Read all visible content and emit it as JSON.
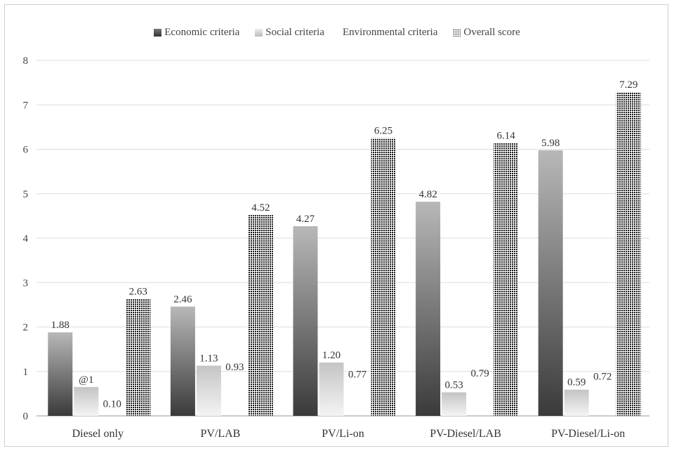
{
  "chart_data": {
    "type": "bar",
    "categories": [
      "Diesel only",
      "PV/LAB",
      "PV/Li-on",
      "PV-Diesel/LAB",
      "PV-Diesel/Li-on"
    ],
    "series": [
      {
        "name": "Economic criteria",
        "values": [
          1.88,
          2.46,
          4.27,
          4.82,
          5.98
        ],
        "labels": [
          "1.88",
          "2.46",
          "4.27",
          "4.82",
          "5.98"
        ],
        "color": "#555555"
      },
      {
        "name": "Social criteria",
        "values": [
          0.65,
          1.13,
          1.2,
          0.53,
          0.59
        ],
        "labels": [
          "@1",
          "1.13",
          "1.20",
          "0.53",
          "0.59"
        ],
        "color": "#dddddd"
      },
      {
        "name": "Environmental criteria",
        "values": [
          0.1,
          0.93,
          0.77,
          0.79,
          0.72
        ],
        "labels": [
          "0.10",
          "0.93",
          "0.77",
          "0.79",
          "0.72"
        ],
        "color": "#ffffff"
      },
      {
        "name": "Overall score",
        "values": [
          2.63,
          4.52,
          6.25,
          6.14,
          7.29
        ],
        "labels": [
          "2.63",
          "4.52",
          "6.25",
          "6.14",
          "7.29"
        ],
        "color": "#222222"
      }
    ],
    "yticks": [
      "0",
      "1",
      "2",
      "3",
      "4",
      "5",
      "6",
      "7",
      "8"
    ],
    "ylim": [
      0,
      8
    ],
    "grid": true,
    "legend_position": "top"
  }
}
